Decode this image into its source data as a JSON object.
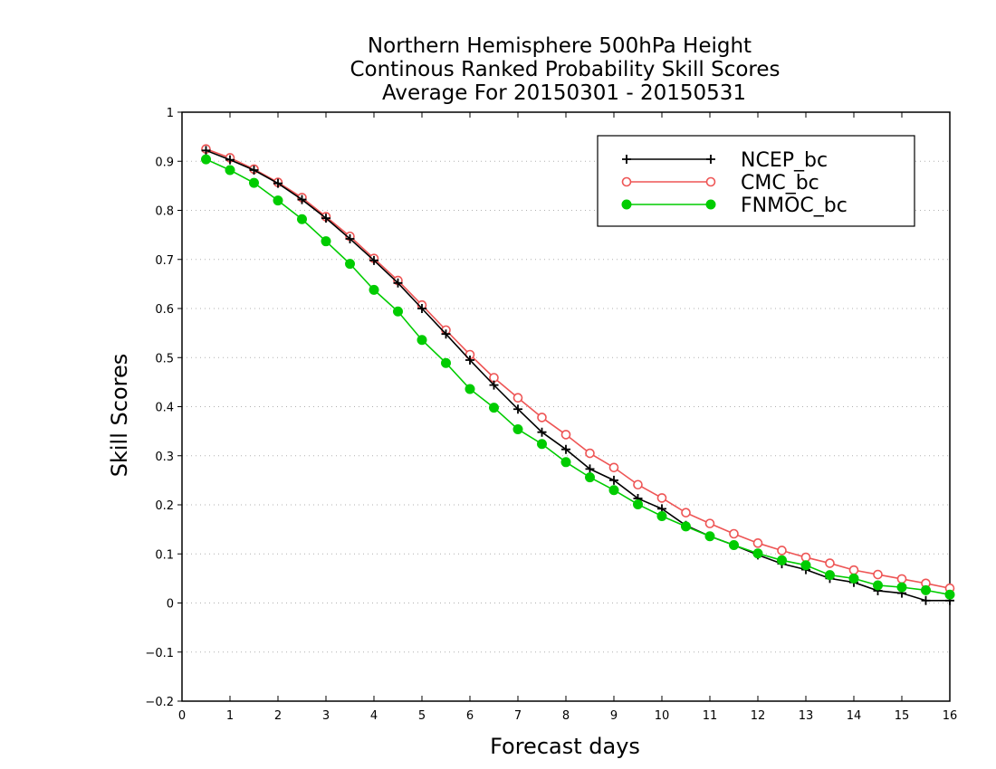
{
  "chart_data": {
    "type": "line",
    "title_lines": [
      "Northern Hemisphere 500hPa Height",
      "Continous Ranked Probability Skill Scores",
      "Average For 20150301 - 20150531"
    ],
    "xlabel": "Forecast days",
    "ylabel": "Skill Scores",
    "xlim": [
      0,
      16
    ],
    "ylim": [
      -0.2,
      1
    ],
    "x_ticks": [
      0,
      1,
      2,
      3,
      4,
      5,
      6,
      7,
      8,
      9,
      10,
      11,
      12,
      13,
      14,
      15,
      16
    ],
    "y_ticks": [
      -0.2,
      -0.1,
      0,
      0.1,
      0.2,
      0.3,
      0.4,
      0.5,
      0.6,
      0.7,
      0.8,
      0.9,
      1
    ],
    "y_tick_labels": [
      "−0.2",
      "−0.1",
      "0",
      "0.1",
      "0.2",
      "0.3",
      "0.4",
      "0.5",
      "0.6",
      "0.7",
      "0.8",
      "0.9",
      "1"
    ],
    "grid": "horizontal dotted",
    "legend_position": "top-right",
    "x": [
      0.5,
      1,
      1.5,
      2,
      2.5,
      3,
      3.5,
      4,
      4.5,
      5,
      5.5,
      6,
      6.5,
      7,
      7.5,
      8,
      8.5,
      9,
      9.5,
      10,
      10.5,
      11,
      11.5,
      12,
      12.5,
      13,
      13.5,
      14,
      14.5,
      15,
      15.5,
      16
    ],
    "series": [
      {
        "name": "NCEP_bc",
        "color": "#000000",
        "marker": "plus",
        "values": [
          0.922,
          0.903,
          0.882,
          0.855,
          0.822,
          0.784,
          0.742,
          0.698,
          0.652,
          0.6,
          0.548,
          0.495,
          0.444,
          0.395,
          0.348,
          0.313,
          0.273,
          0.25,
          0.213,
          0.192,
          0.158,
          0.136,
          0.118,
          0.098,
          0.08,
          0.068,
          0.05,
          0.042,
          0.025,
          0.02,
          0.005,
          0.005
        ]
      },
      {
        "name": "CMC_bc",
        "color": "#ee5555",
        "marker": "open-circle",
        "values": [
          0.925,
          0.907,
          0.884,
          0.857,
          0.826,
          0.787,
          0.747,
          0.702,
          0.657,
          0.607,
          0.556,
          0.506,
          0.459,
          0.418,
          0.378,
          0.343,
          0.305,
          0.276,
          0.241,
          0.214,
          0.184,
          0.162,
          0.141,
          0.122,
          0.107,
          0.093,
          0.081,
          0.067,
          0.058,
          0.049,
          0.04,
          0.03
        ]
      },
      {
        "name": "FNMOC_bc",
        "color": "#00cc00",
        "marker": "filled-circle",
        "values": [
          0.904,
          0.882,
          0.856,
          0.82,
          0.782,
          0.737,
          0.691,
          0.638,
          0.594,
          0.536,
          0.489,
          0.436,
          0.398,
          0.354,
          0.324,
          0.287,
          0.256,
          0.23,
          0.201,
          0.177,
          0.156,
          0.136,
          0.118,
          0.101,
          0.087,
          0.077,
          0.057,
          0.05,
          0.036,
          0.032,
          0.026,
          0.017
        ]
      }
    ]
  }
}
